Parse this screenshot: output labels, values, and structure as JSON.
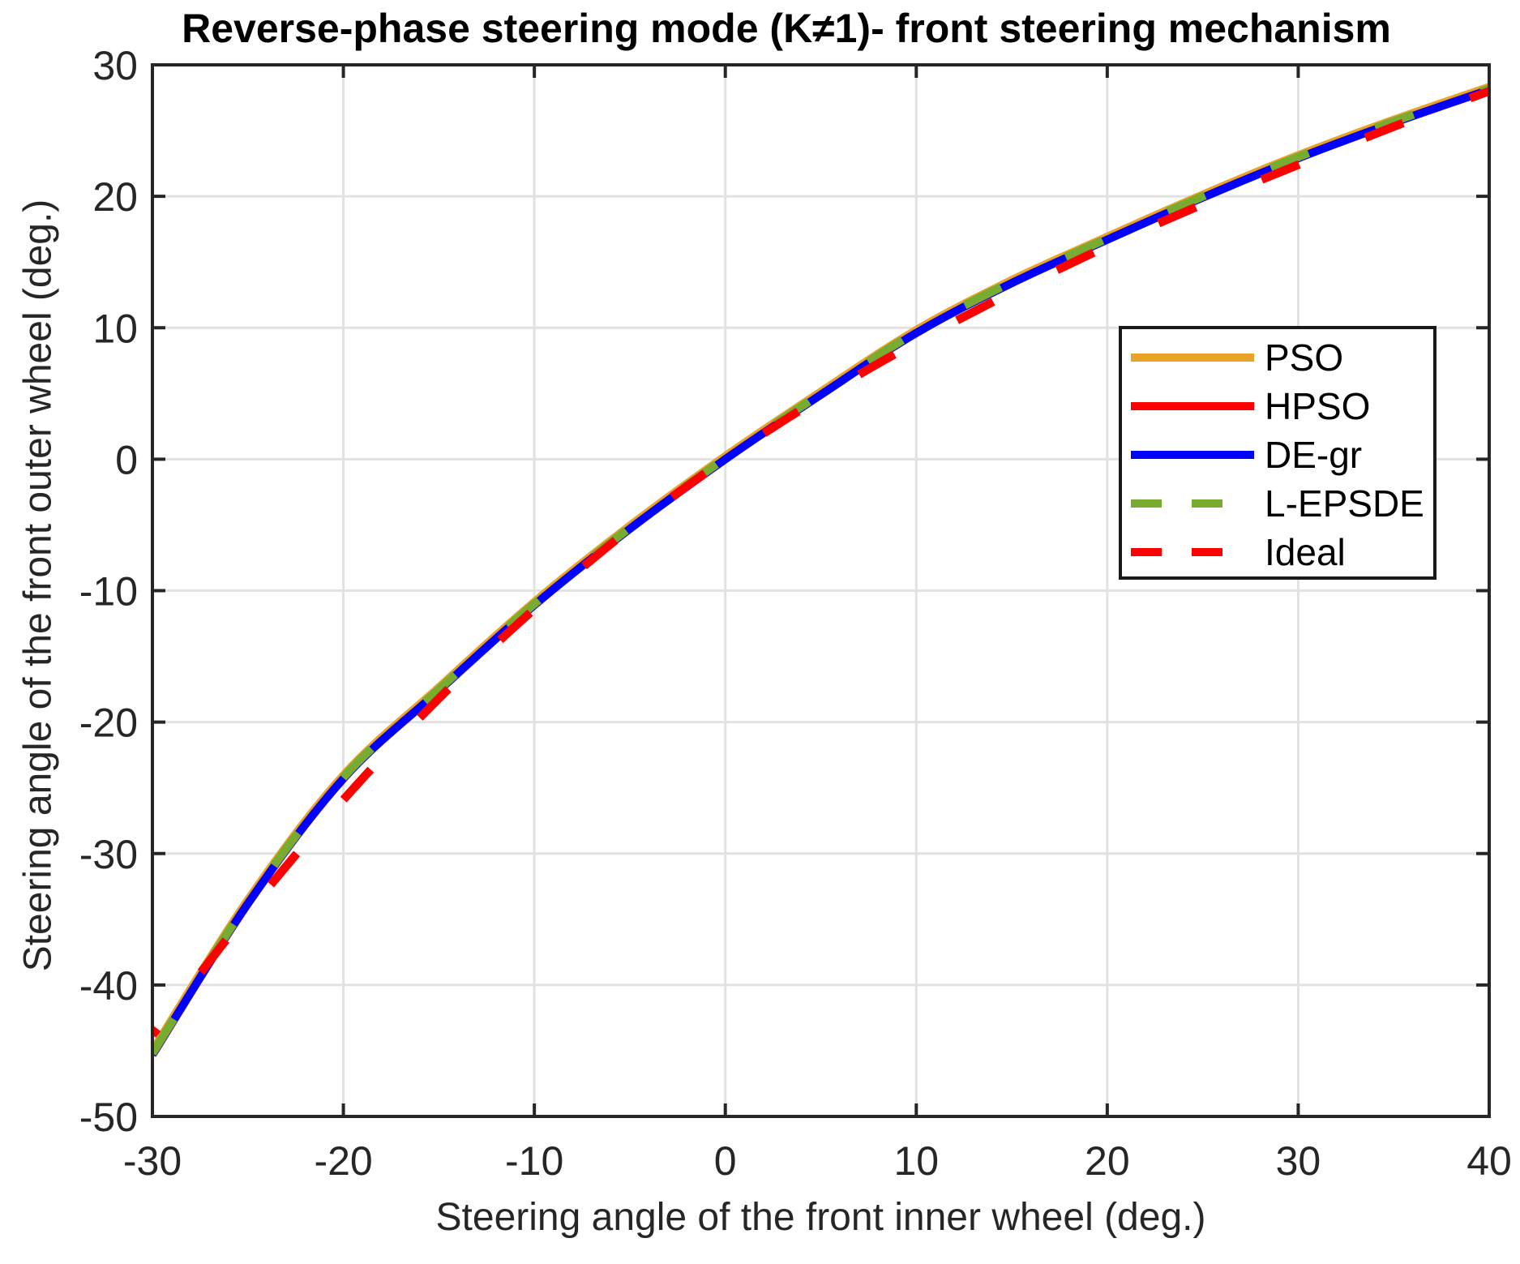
{
  "title": "Reverse-phase steering mode (K≠1)- front steering mechanism",
  "x_axis": {
    "label": "Steering angle of the front inner wheel (deg.)",
    "tick_labels": [
      "-30",
      "-20",
      "-10",
      "0",
      "10",
      "20",
      "30",
      "40"
    ]
  },
  "y_axis": {
    "label": "Steering angle of the front outer wheel (deg.)",
    "tick_labels": [
      "30",
      "20",
      "10",
      "0",
      "-10",
      "-20",
      "-30",
      "-40",
      "-50"
    ]
  },
  "legend": {
    "items": [
      {
        "label": "PSO",
        "color": "#E9A427",
        "style": "solid"
      },
      {
        "label": "HPSO",
        "color": "#FF0000",
        "style": "solid"
      },
      {
        "label": "DE-gr",
        "color": "#0000FF",
        "style": "solid"
      },
      {
        "label": "L-EPSDE",
        "color": "#77AC30",
        "style": "dashed"
      },
      {
        "label": "Ideal",
        "color": "#FF0000",
        "style": "dashed"
      }
    ]
  },
  "chart_data": {
    "type": "line",
    "title": "Reverse-phase steering mode (K≠1)- front steering mechanism",
    "xlabel": "Steering angle of the front inner wheel (deg.)",
    "ylabel": "Steering angle of the front outer wheel (deg.)",
    "xlim": [
      -30,
      40
    ],
    "ylim": [
      -50,
      30
    ],
    "xticks": [
      -30,
      -20,
      -10,
      0,
      10,
      20,
      30,
      40
    ],
    "yticks": [
      -50,
      -40,
      -30,
      -20,
      -10,
      0,
      10,
      20,
      30
    ],
    "grid": true,
    "legend_position": "inside upper right",
    "colors": {
      "grid": "#E2E2E2",
      "axis": "#262626",
      "background": "#FFFFFF"
    },
    "x": [
      -30,
      -25,
      -20,
      -15,
      -10,
      -5,
      0,
      5,
      10,
      15,
      20,
      25,
      30,
      35,
      40
    ],
    "series": [
      {
        "name": "PSO",
        "color": "#E9A427",
        "style": "solid",
        "values": [
          -45.3,
          -33.8,
          -24.3,
          -17.6,
          -11.1,
          -5.3,
          0,
          4.9,
          9.6,
          13.4,
          16.7,
          19.9,
          22.9,
          25.6,
          28.1
        ]
      },
      {
        "name": "HPSO",
        "color": "#FF0000",
        "style": "solid",
        "values": [
          -45.3,
          -33.8,
          -24.3,
          -17.6,
          -11.1,
          -5.3,
          0,
          4.9,
          9.6,
          13.4,
          16.7,
          19.9,
          22.9,
          25.6,
          28.1
        ]
      },
      {
        "name": "DE-gr",
        "color": "#0000FF",
        "style": "solid",
        "values": [
          -45.3,
          -33.8,
          -24.3,
          -17.6,
          -11.1,
          -5.3,
          0,
          4.9,
          9.6,
          13.4,
          16.7,
          19.9,
          22.9,
          25.6,
          28.1
        ]
      },
      {
        "name": "L-EPSDE",
        "color": "#77AC30",
        "style": "dashed",
        "values": [
          -45.3,
          -33.8,
          -24.3,
          -17.6,
          -11.1,
          -5.3,
          0,
          4.9,
          9.6,
          13.4,
          16.7,
          19.9,
          22.9,
          25.6,
          28.1
        ]
      },
      {
        "name": "Ideal",
        "color": "#FF0000",
        "style": "dashed",
        "values": [
          -43.8,
          -34.5,
          -25.9,
          -18.2,
          -11.4,
          -5.3,
          0,
          4.7,
          8.9,
          12.7,
          16.2,
          19.4,
          22.4,
          25.3,
          28.0
        ]
      }
    ]
  }
}
